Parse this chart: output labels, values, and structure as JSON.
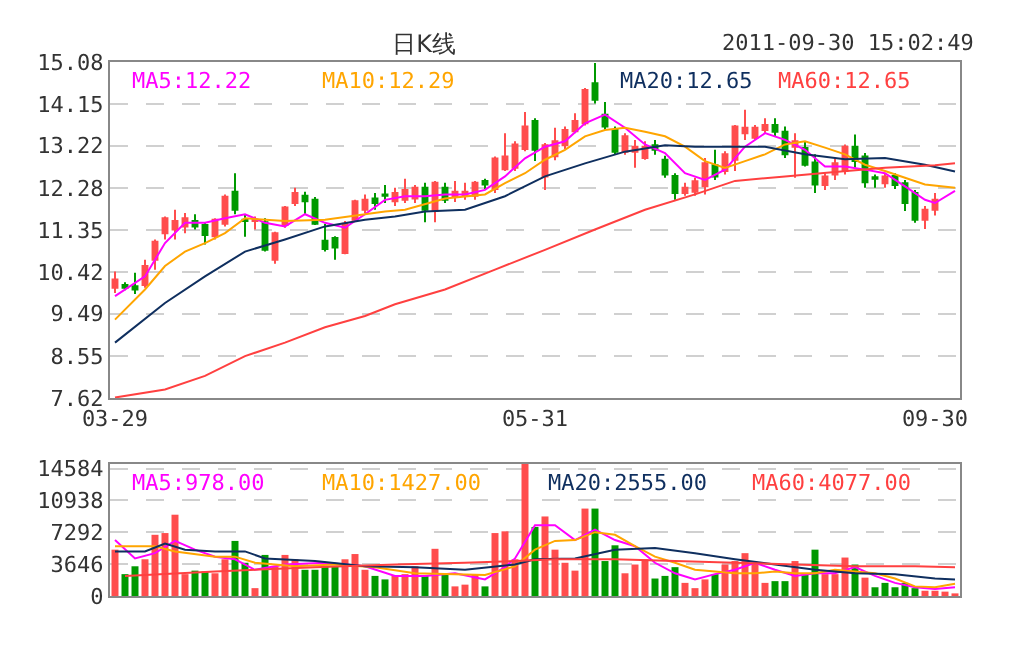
{
  "chart_data": [
    {
      "type": "candlestick",
      "title": "日K线",
      "subtitle": "2011-09-30 15:02:49",
      "grid": "y",
      "categories": [
        "03-29",
        null,
        null,
        null,
        null,
        null,
        null,
        null,
        null,
        null,
        null,
        null,
        null,
        null,
        null,
        null,
        null,
        null,
        null,
        null,
        null,
        null,
        null,
        null,
        null,
        null,
        null,
        null,
        null,
        null,
        null,
        null,
        null,
        null,
        null,
        null,
        null,
        null,
        null,
        null,
        null,
        null,
        "05-31",
        null,
        null,
        null,
        null,
        null,
        null,
        null,
        null,
        null,
        null,
        null,
        null,
        null,
        null,
        null,
        null,
        null,
        null,
        null,
        null,
        null,
        null,
        null,
        null,
        null,
        null,
        null,
        null,
        null,
        null,
        null,
        null,
        null,
        null,
        null,
        null,
        null,
        null,
        null,
        "09-30",
        null,
        null
      ],
      "ylim": [
        7.62,
        15.08
      ],
      "yticks": [
        15.08,
        14.15,
        13.22,
        12.28,
        11.35,
        10.42,
        9.49,
        8.55,
        7.62
      ],
      "series": [
        {
          "ohlc": [
            [
              10.07,
              10.43,
              9.95,
              10.25
            ],
            [
              10.13,
              10.19,
              10.01,
              10.07
            ],
            [
              10.1,
              10.4,
              9.93,
              10.03
            ],
            [
              10.13,
              10.69,
              10.07,
              10.55
            ],
            [
              10.69,
              11.14,
              10.47,
              11.09
            ],
            [
              11.28,
              11.65,
              11.14,
              11.61
            ],
            [
              11.36,
              11.8,
              11.14,
              11.55
            ],
            [
              11.43,
              11.73,
              11.28,
              11.61
            ],
            [
              11.55,
              11.7,
              11.36,
              11.43
            ],
            [
              11.46,
              11.52,
              11.03,
              11.24
            ],
            [
              11.21,
              11.61,
              11.14,
              11.58
            ],
            [
              11.49,
              12.14,
              11.43,
              12.09
            ],
            [
              12.2,
              12.61,
              11.7,
              11.8
            ],
            [
              11.58,
              11.7,
              11.2,
              11.55
            ],
            [
              11.55,
              11.65,
              11.36,
              11.58
            ],
            [
              11.52,
              11.61,
              10.87,
              10.91
            ],
            [
              10.69,
              11.31,
              10.6,
              11.28
            ],
            [
              11.46,
              11.88,
              11.4,
              11.85
            ],
            [
              11.95,
              12.29,
              11.88,
              12.17
            ],
            [
              12.11,
              12.2,
              11.7,
              11.99
            ],
            [
              12.02,
              12.08,
              11.46,
              11.49
            ],
            [
              11.11,
              11.49,
              10.87,
              10.93
            ],
            [
              11.17,
              11.21,
              10.69,
              10.96
            ],
            [
              10.84,
              11.55,
              10.81,
              11.49
            ],
            [
              11.58,
              12.02,
              11.55,
              11.99
            ],
            [
              11.8,
              12.14,
              11.73,
              12.02
            ],
            [
              12.05,
              12.17,
              11.8,
              11.95
            ],
            [
              12.14,
              12.35,
              11.95,
              12.11
            ],
            [
              11.99,
              12.29,
              11.88,
              12.17
            ],
            [
              12.02,
              12.49,
              11.95,
              12.24
            ],
            [
              12.05,
              12.35,
              11.95,
              12.29
            ],
            [
              12.29,
              12.4,
              11.52,
              11.8
            ],
            [
              11.77,
              12.44,
              11.52,
              12.4
            ],
            [
              12.29,
              12.4,
              11.95,
              12.02
            ],
            [
              12.08,
              12.44,
              11.97,
              12.2
            ],
            [
              12.11,
              12.4,
              12.02,
              12.2
            ],
            [
              12.11,
              12.44,
              12.02,
              12.4
            ],
            [
              12.44,
              12.49,
              12.26,
              12.36
            ],
            [
              12.26,
              12.98,
              12.17,
              12.94
            ],
            [
              12.7,
              13.5,
              12.66,
              12.98
            ],
            [
              12.73,
              13.32,
              12.66,
              13.25
            ],
            [
              13.15,
              13.97,
              13.1,
              13.65
            ],
            [
              13.77,
              13.83,
              12.88,
              13.13
            ],
            [
              12.54,
              13.28,
              12.24,
              13.23
            ],
            [
              12.99,
              13.62,
              12.9,
              13.32
            ],
            [
              13.23,
              13.65,
              13.15,
              13.57
            ],
            [
              13.54,
              13.94,
              13.5,
              13.77
            ],
            [
              13.72,
              14.5,
              13.67,
              14.46
            ],
            [
              14.61,
              15.06,
              14.16,
              14.24
            ],
            [
              13.91,
              14.19,
              13.57,
              13.65
            ],
            [
              13.57,
              13.65,
              13.02,
              13.09
            ],
            [
              13.09,
              13.5,
              13.02,
              13.43
            ],
            [
              13.09,
              13.35,
              12.73,
              13.2
            ],
            [
              12.95,
              13.32,
              12.91,
              13.2
            ],
            [
              13.23,
              13.35,
              13.02,
              13.13
            ],
            [
              12.91,
              13.0,
              12.51,
              12.58
            ],
            [
              12.55,
              12.61,
              12.02,
              12.17
            ],
            [
              12.17,
              12.4,
              12.11,
              12.29
            ],
            [
              12.2,
              12.51,
              12.11,
              12.43
            ],
            [
              12.32,
              12.95,
              12.14,
              12.83
            ],
            [
              12.79,
              13.13,
              12.46,
              12.54
            ],
            [
              12.66,
              13.1,
              12.58,
              13.03
            ],
            [
              12.91,
              13.68,
              12.66,
              13.65
            ],
            [
              13.5,
              14.02,
              13.35,
              13.62
            ],
            [
              13.4,
              13.68,
              13.35,
              13.62
            ],
            [
              13.57,
              13.83,
              13.5,
              13.68
            ],
            [
              13.68,
              13.83,
              13.43,
              13.53
            ],
            [
              13.53,
              13.65,
              12.95,
              13.03
            ],
            [
              13.2,
              13.5,
              12.51,
              13.32
            ],
            [
              13.17,
              13.32,
              12.76,
              12.8
            ],
            [
              12.85,
              13.03,
              12.17,
              12.36
            ],
            [
              12.35,
              12.61,
              12.24,
              12.54
            ],
            [
              12.58,
              12.94,
              12.46,
              12.83
            ],
            [
              12.66,
              13.25,
              12.58,
              13.2
            ],
            [
              13.2,
              13.47,
              12.73,
              12.88
            ],
            [
              12.98,
              13.06,
              12.29,
              12.41
            ],
            [
              12.52,
              12.58,
              12.29,
              12.49
            ],
            [
              12.39,
              12.61,
              12.29,
              12.54
            ],
            [
              12.55,
              12.61,
              12.26,
              12.35
            ],
            [
              12.39,
              12.46,
              11.77,
              11.95
            ],
            [
              12.17,
              12.24,
              11.51,
              11.58
            ],
            [
              11.58,
              11.88,
              11.37,
              11.8
            ],
            [
              11.8,
              12.17,
              11.67,
              12.02
            ],
            null,
            null
          ],
          "colors": [
            "#ff4d4d",
            "#009900",
            "#009900",
            "#ff4d4d",
            "#ff4d4d",
            "#ff4d4d",
            "#ff4d4d",
            "#ff4d4d",
            "#009900",
            "#009900",
            "#ff4d4d",
            "#ff4d4d",
            "#009900",
            "#009900",
            "#ff4d4d",
            "#009900",
            "#ff4d4d",
            "#ff4d4d",
            "#ff4d4d",
            "#009900",
            "#009900",
            "#009900",
            "#009900",
            "#ff4d4d",
            "#ff4d4d",
            "#ff4d4d",
            "#009900",
            "#009900",
            "#ff4d4d",
            "#ff4d4d",
            "#ff4d4d",
            "#009900",
            "#ff4d4d",
            "#009900",
            "#ff4d4d",
            "#ff4d4d",
            "#ff4d4d",
            "#009900",
            "#ff4d4d",
            "#ff4d4d",
            "#ff4d4d",
            "#ff4d4d",
            "#009900",
            "#ff4d4d",
            "#ff4d4d",
            "#ff4d4d",
            "#ff4d4d",
            "#ff4d4d",
            "#009900",
            "#009900",
            "#009900",
            "#ff4d4d",
            "#ff4d4d",
            "#ff4d4d",
            "#009900",
            "#009900",
            "#009900",
            "#ff4d4d",
            "#ff4d4d",
            "#ff4d4d",
            "#009900",
            "#ff4d4d",
            "#ff4d4d",
            "#ff4d4d",
            "#ff4d4d",
            "#ff4d4d",
            "#009900",
            "#009900",
            "#ff4d4d",
            "#009900",
            "#009900",
            "#ff4d4d",
            "#ff4d4d",
            "#ff4d4d",
            "#009900",
            "#009900",
            "#009900",
            "#ff4d4d",
            "#009900",
            "#009900",
            "#009900",
            "#ff4d4d",
            "#ff4d4d",
            null,
            null
          ]
        },
        {
          "type": "line",
          "name": "MA5:12.22",
          "color": "#ff00ff",
          "values": [
            9.88,
            null,
            null,
            10.32,
            null,
            11.06,
            null,
            11.51,
            null,
            11.51,
            null,
            11.61,
            null,
            11.7,
            null,
            11.51,
            null,
            11.43,
            null,
            11.7,
            null,
            11.51,
            null,
            11.4,
            null,
            11.7,
            null,
            12.02,
            null,
            12.1,
            null,
            12.1,
            null,
            12.14,
            null,
            12.14,
            null,
            12.24,
            null,
            12.54,
            null,
            12.94,
            null,
            13.2,
            null,
            13.32,
            null,
            13.72,
            null,
            13.91,
            null,
            13.62,
            null,
            13.25,
            null,
            13.06,
            null,
            12.61,
            null,
            12.46,
            null,
            12.69,
            null,
            13.2,
            null,
            13.5,
            null,
            13.35,
            null,
            13.13,
            null,
            12.76,
            null,
            12.76,
            null,
            12.69,
            null,
            12.61,
            null,
            12.32,
            null,
            12.02,
            11.95,
            null,
            12.22
          ]
        },
        {
          "type": "line",
          "name": "MA10:12.29",
          "color": "#ffa500",
          "values": [
            9.36,
            null,
            null,
            10.03,
            null,
            10.55,
            null,
            10.87,
            null,
            11.06,
            null,
            11.28,
            null,
            11.61,
            null,
            null,
            null,
            11.55,
            null,
            null,
            null,
            11.58,
            null,
            null,
            null,
            11.7,
            null,
            11.76,
            null,
            11.8,
            null,
            null,
            null,
            12.05,
            null,
            null,
            null,
            12.14,
            null,
            12.39,
            null,
            12.61,
            null,
            12.91,
            null,
            13.13,
            null,
            13.43,
            null,
            13.57,
            null,
            13.62,
            null,
            13.53,
            null,
            13.43,
            null,
            13.2,
            null,
            12.88,
            null,
            12.73,
            null,
            12.88,
            null,
            13.03,
            null,
            13.25,
            null,
            13.32,
            null,
            13.18,
            null,
            13.03,
            null,
            12.8,
            null,
            12.66,
            null,
            12.51,
            null,
            12.36,
            null,
            null,
            12.29
          ]
        },
        {
          "type": "line",
          "name": "MA20:12.65",
          "color": "#0f2f5f",
          "values": [
            8.85,
            null,
            null,
            null,
            null,
            9.73,
            null,
            null,
            null,
            10.32,
            null,
            null,
            null,
            10.87,
            null,
            null,
            null,
            11.14,
            null,
            null,
            null,
            11.43,
            null,
            null,
            null,
            11.58,
            null,
            null,
            11.65,
            null,
            null,
            11.76,
            null,
            null,
            null,
            11.8,
            null,
            null,
            null,
            12.1,
            null,
            null,
            null,
            12.54,
            null,
            null,
            null,
            12.83,
            null,
            null,
            null,
            13.09,
            null,
            null,
            null,
            13.23,
            null,
            null,
            13.2,
            null,
            null,
            13.2,
            null,
            null,
            null,
            13.2,
            null,
            null,
            null,
            13.03,
            null,
            null,
            null,
            12.92,
            null,
            null,
            null,
            12.95,
            null,
            null,
            null,
            12.8,
            null,
            null,
            12.65
          ]
        },
        {
          "type": "line",
          "name": "MA60:12.65",
          "color": "#ff4040",
          "values": [
            7.63,
            null,
            null,
            null,
            null,
            7.81,
            null,
            null,
            null,
            8.11,
            null,
            null,
            null,
            8.55,
            null,
            null,
            null,
            8.85,
            null,
            null,
            null,
            9.19,
            null,
            null,
            null,
            9.44,
            null,
            null,
            9.7,
            null,
            null,
            null,
            null,
            10.03,
            null,
            null,
            null,
            null,
            10.47,
            null,
            null,
            null,
            null,
            10.91,
            null,
            null,
            null,
            null,
            11.36,
            null,
            null,
            null,
            null,
            11.8,
            null,
            null,
            null,
            null,
            12.14,
            null,
            null,
            null,
            12.44,
            null,
            null,
            null,
            null,
            12.54,
            null,
            null,
            null,
            null,
            12.64,
            null,
            null,
            null,
            null,
            12.73,
            null,
            null,
            null,
            null,
            12.79,
            null,
            12.83
          ]
        }
      ]
    },
    {
      "type": "bar",
      "grid": "y",
      "tick_labels": "y",
      "categories": [
        null,
        null,
        null,
        null,
        null,
        null,
        null,
        null,
        null,
        null,
        null,
        null,
        null,
        null,
        null,
        null,
        null,
        null,
        null,
        null,
        null,
        null,
        null,
        null,
        null,
        null,
        null,
        null,
        null,
        null,
        null,
        null,
        null,
        null,
        null,
        null,
        null,
        null,
        null,
        null,
        null,
        null,
        null,
        null,
        null,
        null,
        null,
        null,
        null,
        null,
        null,
        null,
        null,
        null,
        null,
        null,
        null,
        null,
        null,
        null,
        null,
        null,
        null,
        null,
        null,
        null,
        null,
        null,
        null,
        null,
        null,
        null,
        null,
        null,
        null,
        null,
        null,
        null,
        null,
        null,
        null,
        null,
        null,
        null,
        null
      ],
      "ylim": [
        0,
        15100
      ],
      "yticks": [
        14584,
        10938,
        7292,
        3646,
        0
      ],
      "series": [
        {
          "values": [
            5300,
            2500,
            3400,
            4200,
            7000,
            7200,
            9300,
            2500,
            2900,
            2800,
            2600,
            4200,
            6300,
            3800,
            900,
            4700,
            3400,
            4700,
            4200,
            3000,
            3000,
            3400,
            3400,
            4200,
            4800,
            3000,
            2300,
            1900,
            2300,
            2500,
            3400,
            2300,
            5400,
            2600,
            1100,
            1300,
            2500,
            1100,
            7200,
            7400,
            4200,
            15100,
            7900,
            9100,
            5300,
            3800,
            2900,
            10000,
            10000,
            4000,
            5800,
            2600,
            3600,
            4200,
            2000,
            2300,
            3300,
            1500,
            900,
            1900,
            2500,
            3600,
            4000,
            4900,
            3800,
            1500,
            1700,
            1700,
            4000,
            2400,
            5300,
            2500,
            2500,
            4400,
            3600,
            2100,
            1000,
            1500,
            1000,
            1500,
            900,
            600,
            600,
            500,
            300
          ],
          "colors": [
            "#ff4d4d",
            "#009900",
            "#009900",
            "#ff4d4d",
            "#ff4d4d",
            "#ff4d4d",
            "#ff4d4d",
            "#ff4d4d",
            "#009900",
            "#009900",
            "#ff4d4d",
            "#ff4d4d",
            "#009900",
            "#009900",
            "#ff4d4d",
            "#009900",
            "#ff4d4d",
            "#ff4d4d",
            "#ff4d4d",
            "#009900",
            "#009900",
            "#009900",
            "#009900",
            "#ff4d4d",
            "#ff4d4d",
            "#ff4d4d",
            "#009900",
            "#009900",
            "#ff4d4d",
            "#ff4d4d",
            "#ff4d4d",
            "#009900",
            "#ff4d4d",
            "#009900",
            "#ff4d4d",
            "#ff4d4d",
            "#ff4d4d",
            "#009900",
            "#ff4d4d",
            "#ff4d4d",
            "#ff4d4d",
            "#ff4d4d",
            "#009900",
            "#ff4d4d",
            "#ff4d4d",
            "#ff4d4d",
            "#ff4d4d",
            "#ff4d4d",
            "#009900",
            "#009900",
            "#009900",
            "#ff4d4d",
            "#ff4d4d",
            "#ff4d4d",
            "#009900",
            "#009900",
            "#009900",
            "#ff4d4d",
            "#ff4d4d",
            "#ff4d4d",
            "#009900",
            "#ff4d4d",
            "#ff4d4d",
            "#ff4d4d",
            "#ff4d4d",
            "#ff4d4d",
            "#009900",
            "#009900",
            "#ff4d4d",
            "#009900",
            "#009900",
            "#ff4d4d",
            "#ff4d4d",
            "#ff4d4d",
            "#009900",
            "#ff4d4d",
            "#009900",
            "#009900",
            "#009900",
            "#009900",
            "#009900",
            "#ff4d4d",
            "#ff4d4d",
            "#ff4d4d",
            "#ff4d4d"
          ]
        },
        {
          "type": "line",
          "name": "MA5:978.00",
          "color": "#ff00ff",
          "values": [
            6400,
            null,
            4300,
            null,
            4900,
            null,
            6300,
            null,
            5300,
            null,
            4500,
            null,
            4200,
            null,
            3000,
            null,
            null,
            3600,
            null,
            null,
            null,
            3800,
            null,
            null,
            null,
            3400,
            null,
            null,
            2300,
            null,
            null,
            2300,
            null,
            null,
            2600,
            null,
            null,
            1900,
            null,
            3300,
            4300,
            null,
            8100,
            null,
            8100,
            null,
            6400,
            null,
            7600,
            null,
            6400,
            null,
            5700,
            null,
            3800,
            null,
            2600,
            null,
            1900,
            null,
            2500,
            null,
            3000,
            null,
            3800,
            null,
            3000,
            null,
            2300,
            null,
            2600,
            null,
            2600,
            null,
            3300,
            null,
            2300,
            null,
            1500,
            null,
            1000,
            null,
            800,
            null,
            1000
          ]
        },
        {
          "type": "line",
          "name": "MA10:1427.00",
          "color": "#ffa500",
          "values": [
            5700,
            null,
            null,
            null,
            5700,
            null,
            5100,
            null,
            null,
            null,
            4500,
            null,
            4500,
            null,
            3800,
            null,
            null,
            null,
            3400,
            null,
            null,
            null,
            3600,
            null,
            null,
            null,
            3300,
            null,
            null,
            null,
            2600,
            null,
            null,
            null,
            2500,
            null,
            null,
            2400,
            null,
            null,
            3400,
            null,
            5300,
            null,
            6300,
            null,
            6400,
            null,
            7300,
            null,
            7000,
            null,
            5700,
            null,
            4500,
            null,
            3800,
            null,
            3000,
            null,
            2800,
            null,
            2600,
            null,
            2600,
            null,
            2800,
            null,
            2600,
            null,
            2600,
            null,
            3000,
            null,
            2800,
            null,
            2600,
            null,
            2000,
            null,
            1100,
            null,
            1000,
            null,
            1400
          ]
        },
        {
          "type": "line",
          "name": "MA20:2555.00",
          "color": "#0f2f5f",
          "values": [
            5100,
            null,
            null,
            5100,
            null,
            6000,
            null,
            5300,
            null,
            null,
            5100,
            null,
            null,
            5100,
            null,
            4300,
            null,
            null,
            null,
            null,
            4000,
            null,
            null,
            null,
            null,
            3400,
            null,
            null,
            null,
            null,
            3300,
            null,
            null,
            null,
            null,
            3000,
            null,
            null,
            null,
            null,
            3600,
            null,
            4200,
            null,
            null,
            null,
            4300,
            null,
            null,
            null,
            5300,
            null,
            null,
            null,
            5500,
            null,
            null,
            null,
            4900,
            null,
            null,
            null,
            4200,
            null,
            null,
            null,
            3600,
            null,
            null,
            null,
            3000,
            null,
            null,
            null,
            2600,
            null,
            null,
            null,
            2500,
            null,
            null,
            null,
            2000,
            null,
            1900
          ]
        },
        {
          "type": "line",
          "name": "MA60:4077.00",
          "color": "#ff4040",
          "values": [
            null,
            2300,
            null,
            null,
            null,
            null,
            null,
            null,
            null,
            null,
            2800,
            null,
            null,
            null,
            null,
            null,
            null,
            null,
            null,
            null,
            3300,
            null,
            null,
            null,
            null,
            null,
            null,
            null,
            3600,
            null,
            null,
            null,
            null,
            null,
            null,
            3800,
            null,
            null,
            null,
            null,
            4000,
            null,
            null,
            null,
            4200,
            null,
            null,
            null,
            null,
            null,
            4200,
            null,
            null,
            null,
            null,
            null,
            4000,
            null,
            null,
            null,
            null,
            null,
            3800,
            null,
            null,
            null,
            null,
            null,
            3600,
            null,
            null,
            null,
            null,
            null,
            3400,
            null,
            null,
            null,
            null,
            null,
            3400,
            null,
            null,
            null,
            3300
          ]
        }
      ]
    }
  ]
}
